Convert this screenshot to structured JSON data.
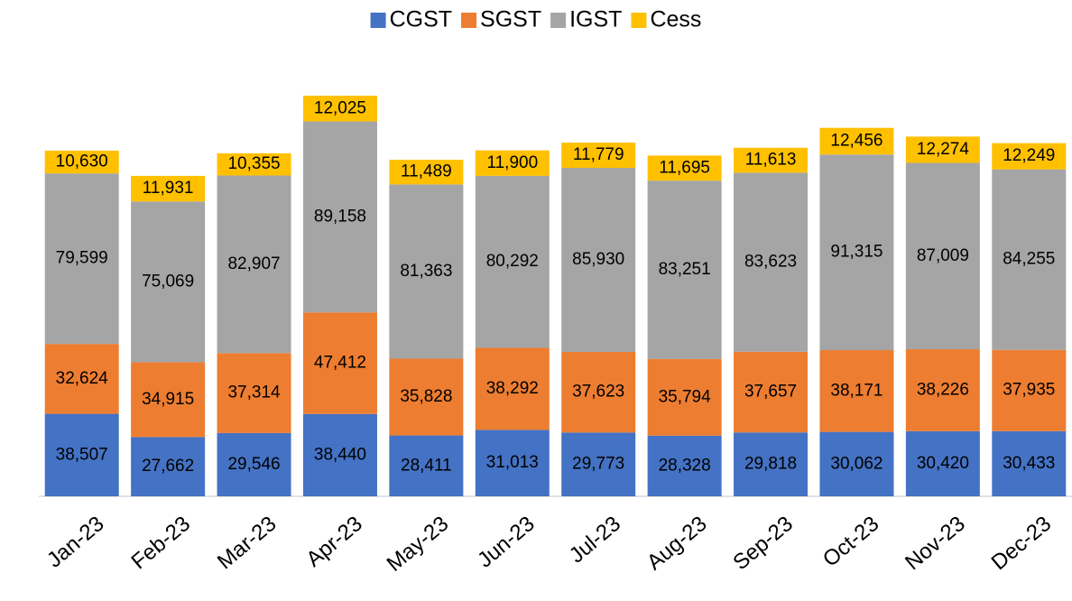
{
  "chart_data": {
    "type": "stacked_bar",
    "categories": [
      "Jan-23",
      "Feb-23",
      "Mar-23",
      "Apr-23",
      "May-23",
      "Jun-23",
      "Jul-23",
      "Aug-23",
      "Sep-23",
      "Oct-23",
      "Nov-23",
      "Dec-23"
    ],
    "series": [
      {
        "name": "CGST",
        "color": "#4472c4",
        "values": [
          38507,
          27662,
          29546,
          38440,
          28411,
          31013,
          29773,
          28328,
          29818,
          30062,
          30420,
          30433
        ],
        "value_labels": [
          "38,507",
          "27,662",
          "29,546",
          "38,440",
          "28,411",
          "31,013",
          "29,773",
          "28,328",
          "29,818",
          "30,062",
          "30,420",
          "30,433"
        ]
      },
      {
        "name": "SGST",
        "color": "#ed7d31",
        "values": [
          32624,
          34915,
          37314,
          47412,
          35828,
          38292,
          37623,
          35794,
          37657,
          38171,
          38226,
          37935
        ],
        "value_labels": [
          "32,624",
          "34,915",
          "37,314",
          "47,412",
          "35,828",
          "38,292",
          "37,623",
          "35,794",
          "37,657",
          "38,171",
          "38,226",
          "37,935"
        ]
      },
      {
        "name": "IGST",
        "color": "#a5a5a5",
        "values": [
          79599,
          75069,
          82907,
          89158,
          81363,
          80292,
          85930,
          83251,
          83623,
          91315,
          87009,
          84255
        ],
        "value_labels": [
          "79,599",
          "75,069",
          "82,907",
          "89,158",
          "81,363",
          "80,292",
          "85,930",
          "83,251",
          "83,623",
          "91,315",
          "87,009",
          "84,255"
        ]
      },
      {
        "name": "Cess",
        "color": "#ffc000",
        "values": [
          10630,
          11931,
          10355,
          12025,
          11489,
          11900,
          11779,
          11695,
          11613,
          12456,
          12274,
          12249
        ],
        "value_labels": [
          "10,630",
          "11,931",
          "10,355",
          "12,025",
          "11,489",
          "11,900",
          "11,779",
          "11,695",
          "11,613",
          "12,456",
          "12,274",
          "12,249"
        ]
      }
    ],
    "legend": "top"
  }
}
